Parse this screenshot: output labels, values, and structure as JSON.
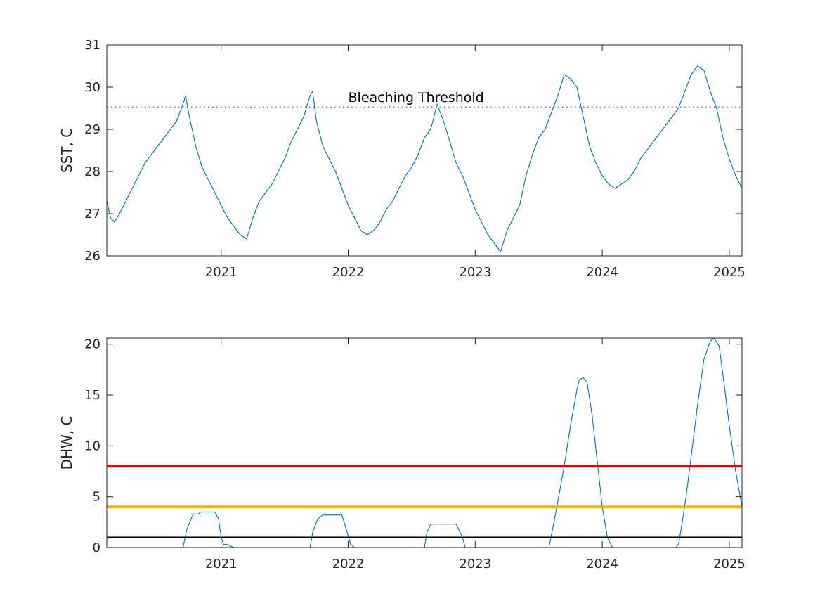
{
  "chart_data": [
    {
      "type": "line",
      "ylabel": "SST, C",
      "xlabel": "",
      "xlim": [
        2020.1,
        2025.1
      ],
      "ylim": [
        26,
        31
      ],
      "xticks": [
        2021,
        2022,
        2023,
        2024,
        2025
      ],
      "xtick_labels": [
        "2021",
        "2022",
        "2023",
        "2024",
        "2025"
      ],
      "yticks": [
        26,
        27,
        28,
        29,
        30,
        31
      ],
      "ytick_labels": [
        "26",
        "27",
        "28",
        "29",
        "30",
        "31"
      ],
      "grid": false,
      "series_color": "#0072BD",
      "reference_lines": [
        {
          "y": 29.53,
          "style": "dotted",
          "color": "#3333CC",
          "label": "Bleaching Threshold"
        }
      ],
      "series": [
        {
          "x": [
            2020.1,
            2020.13,
            2020.16,
            2020.2,
            2020.25,
            2020.3,
            2020.35,
            2020.4,
            2020.45,
            2020.5,
            2020.55,
            2020.6,
            2020.65,
            2020.7,
            2020.72,
            2020.75,
            2020.8,
            2020.85,
            2020.9,
            2020.95,
            2021.0,
            2021.05,
            2021.1,
            2021.15,
            2021.2,
            2021.25,
            2021.3,
            2021.35,
            2021.4,
            2021.45,
            2021.5,
            2021.55,
            2021.6,
            2021.65,
            2021.7,
            2021.72,
            2021.75,
            2021.8,
            2021.85,
            2021.9,
            2021.95,
            2022.0,
            2022.05,
            2022.1,
            2022.15,
            2022.2,
            2022.25,
            2022.3,
            2022.35,
            2022.4,
            2022.45,
            2022.5,
            2022.55,
            2022.6,
            2022.65,
            2022.7,
            2022.75,
            2022.8,
            2022.85,
            2022.9,
            2022.95,
            2023.0,
            2023.05,
            2023.1,
            2023.15,
            2023.2,
            2023.25,
            2023.3,
            2023.35,
            2023.4,
            2023.45,
            2023.5,
            2023.55,
            2023.6,
            2023.65,
            2023.7,
            2023.75,
            2023.8,
            2023.85,
            2023.9,
            2023.95,
            2024.0,
            2024.05,
            2024.1,
            2024.15,
            2024.2,
            2024.25,
            2024.3,
            2024.35,
            2024.4,
            2024.45,
            2024.5,
            2024.55,
            2024.6,
            2024.65,
            2024.7,
            2024.75,
            2024.8,
            2024.85,
            2024.9,
            2024.95,
            2025.0,
            2025.05,
            2025.1
          ],
          "values": [
            27.3,
            26.9,
            26.8,
            27.0,
            27.3,
            27.6,
            27.9,
            28.2,
            28.4,
            28.6,
            28.8,
            29.0,
            29.2,
            29.6,
            29.8,
            29.3,
            28.6,
            28.1,
            27.8,
            27.5,
            27.2,
            26.9,
            26.7,
            26.5,
            26.4,
            26.9,
            27.3,
            27.5,
            27.7,
            28.0,
            28.3,
            28.7,
            29.0,
            29.3,
            29.8,
            29.9,
            29.2,
            28.6,
            28.3,
            28.0,
            27.6,
            27.2,
            26.9,
            26.6,
            26.5,
            26.6,
            26.8,
            27.1,
            27.3,
            27.6,
            27.9,
            28.1,
            28.4,
            28.8,
            29.0,
            29.6,
            29.2,
            28.7,
            28.2,
            27.9,
            27.5,
            27.1,
            26.8,
            26.5,
            26.3,
            26.1,
            26.6,
            26.9,
            27.2,
            27.9,
            28.4,
            28.8,
            29.0,
            29.4,
            29.8,
            30.3,
            30.2,
            30.0,
            29.3,
            28.6,
            28.2,
            27.9,
            27.7,
            27.6,
            27.7,
            27.8,
            28.0,
            28.3,
            28.5,
            28.7,
            28.9,
            29.1,
            29.3,
            29.5,
            29.9,
            30.3,
            30.5,
            30.4,
            29.9,
            29.5,
            28.8,
            28.3,
            27.9,
            27.6
          ]
        }
      ]
    },
    {
      "type": "line",
      "ylabel": "DHW, C",
      "xlabel": "",
      "xlim": [
        2020.1,
        2025.1
      ],
      "ylim": [
        0,
        20.6
      ],
      "xticks": [
        2021,
        2022,
        2023,
        2024,
        2025
      ],
      "xtick_labels": [
        "2021",
        "2022",
        "2023",
        "2024",
        "2025"
      ],
      "yticks": [
        0,
        5,
        10,
        15,
        20
      ],
      "ytick_labels": [
        "0",
        "5",
        "10",
        "15",
        "20"
      ],
      "grid": false,
      "series_color": "#0072BD",
      "reference_lines": [
        {
          "y": 8,
          "style": "solid",
          "color": "#E80000"
        },
        {
          "y": 4,
          "style": "solid",
          "color": "#F5A300"
        },
        {
          "y": 1,
          "style": "solid",
          "color": "#000000"
        }
      ],
      "series": [
        {
          "x": [
            2020.1,
            2020.7,
            2020.73,
            2020.78,
            2020.82,
            2020.84,
            2020.95,
            2020.98,
            2021.0,
            2021.02,
            2021.05,
            2021.1,
            2021.7,
            2021.72,
            2021.76,
            2021.8,
            2021.82,
            2021.95,
            2021.98,
            2022.02,
            2022.05,
            2022.1,
            2022.6,
            2022.62,
            2022.65,
            2022.85,
            2022.9,
            2022.92,
            2023.0,
            2023.58,
            2023.62,
            2023.65,
            2023.7,
            2023.75,
            2023.8,
            2023.82,
            2023.85,
            2023.88,
            2023.92,
            2023.96,
            2024.0,
            2024.04,
            2024.08,
            2024.1,
            2024.58,
            2024.6,
            2024.63,
            2024.66,
            2024.7,
            2024.75,
            2024.8,
            2024.85,
            2024.88,
            2024.92,
            2024.96,
            2025.0,
            2025.05,
            2025.1
          ],
          "values": [
            0,
            0,
            1.8,
            3.3,
            3.3,
            3.5,
            3.5,
            2.8,
            1.0,
            0.3,
            0.3,
            0,
            0,
            1.5,
            2.8,
            3.2,
            3.2,
            3.2,
            2.0,
            0.3,
            0,
            0,
            0,
            1.5,
            2.3,
            2.3,
            1.0,
            0,
            0,
            0,
            2.5,
            4.5,
            8.0,
            12.0,
            15.5,
            16.5,
            16.7,
            16.3,
            13.0,
            8.5,
            4.0,
            1.0,
            0,
            0,
            0,
            0.3,
            2.5,
            5.0,
            9.0,
            14.0,
            18.5,
            20.3,
            20.6,
            19.8,
            16.0,
            12.0,
            7.5,
            4.0
          ]
        }
      ]
    }
  ]
}
